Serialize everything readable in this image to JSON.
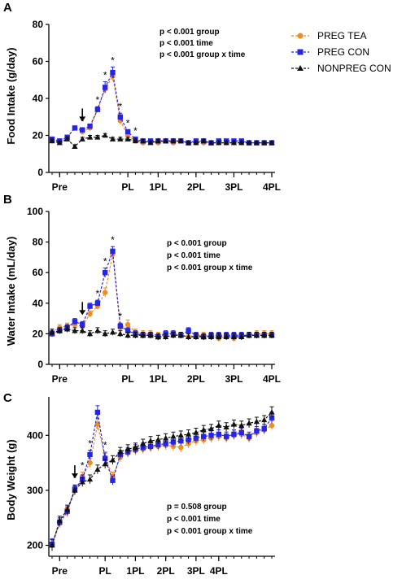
{
  "colors": {
    "preg_tea": "#f28c1e",
    "preg_con": "#2525e6",
    "nonpreg_con": "#111111"
  },
  "legend": [
    {
      "label": "PREG TEA",
      "color": "#f28c1e",
      "marker": "circle",
      "icon": "orange-circle-dashed"
    },
    {
      "label": "PREG CON",
      "color": "#2525e6",
      "marker": "square",
      "icon": "blue-square-dashed"
    },
    {
      "label": "NONPREG CON",
      "color": "#111111",
      "marker": "triangle",
      "icon": "black-triangle-dashed"
    }
  ],
  "chart_data": [
    {
      "type": "line",
      "panel_label": "A",
      "ylabel": "Food Intake (g/day)",
      "ylim": [
        0,
        80
      ],
      "yticks": [
        0,
        20,
        40,
        60,
        80
      ],
      "x_tick_labels": [
        "Pre",
        "PL",
        "1PL",
        "2PL",
        "3PL",
        "4PL"
      ],
      "x_tick_index": [
        1,
        10,
        14,
        19,
        24,
        29
      ],
      "stats": [
        "p < 0.001 group",
        "p < 0.001 time",
        "p < 0.001 group x time"
      ],
      "arrow_index": 4,
      "stars": [
        4,
        6,
        7,
        8,
        9,
        10,
        11
      ],
      "series": [
        {
          "name": "PREG TEA",
          "values": [
            17,
            17,
            19,
            24,
            22,
            24,
            34,
            45,
            52,
            28,
            20,
            17,
            16,
            17,
            16,
            17,
            16,
            17,
            16,
            16,
            16,
            16,
            16,
            16,
            16,
            16,
            16,
            16,
            16,
            16
          ],
          "errors": [
            1,
            1,
            1,
            1,
            1,
            1,
            1.5,
            2,
            2.5,
            2,
            1,
            1,
            1,
            1,
            1,
            1,
            1,
            1,
            1,
            1,
            1,
            1,
            1,
            1,
            1,
            1,
            1,
            1,
            1,
            1
          ]
        },
        {
          "name": "PREG CON",
          "values": [
            18,
            17,
            19,
            24,
            23,
            25,
            34,
            46,
            54,
            30,
            22,
            18,
            17,
            17,
            17,
            17,
            17,
            17,
            16,
            17,
            17,
            16,
            17,
            17,
            17,
            17,
            16,
            16,
            16,
            16
          ],
          "errors": [
            1,
            1,
            1,
            1,
            1,
            1,
            1.5,
            3,
            3,
            2,
            1,
            1,
            1,
            1,
            1,
            1,
            1,
            1,
            1,
            1,
            1,
            1,
            1,
            1,
            1,
            1,
            1,
            1,
            1,
            1
          ]
        },
        {
          "name": "NONPREG CON",
          "values": [
            17,
            16,
            18,
            14,
            18,
            19,
            19,
            20,
            18,
            18,
            18,
            17,
            17,
            16,
            17,
            17,
            17,
            17,
            16,
            16,
            17,
            16,
            16,
            16,
            16,
            16,
            16,
            16,
            16,
            16
          ],
          "errors": [
            1,
            1,
            1,
            1,
            1,
            1,
            1,
            1,
            1,
            1,
            1,
            1,
            1,
            1,
            1,
            1,
            1,
            1,
            1,
            1,
            1,
            1,
            1,
            1,
            1,
            1,
            1,
            1,
            1,
            1
          ]
        }
      ]
    },
    {
      "type": "line",
      "panel_label": "B",
      "ylabel": "Water Intake (mL/day)",
      "ylim": [
        0,
        100
      ],
      "yticks": [
        0,
        20,
        40,
        60,
        80,
        100
      ],
      "x_tick_labels": [
        "Pre",
        "PL",
        "1PL",
        "2PL",
        "3PL",
        "4PL"
      ],
      "x_tick_index": [
        1,
        10,
        14,
        19,
        24,
        29
      ],
      "stats": [
        "p < 0.001 group",
        "p < 0.001 time",
        "p < 0.001 group x time"
      ],
      "arrow_index": 4,
      "stars": [
        6,
        7,
        8,
        9
      ],
      "series": [
        {
          "name": "PREG TEA",
          "values": [
            21,
            24,
            25,
            26,
            25,
            33,
            38,
            47,
            72,
            24,
            26,
            21,
            20,
            20,
            19,
            20,
            20,
            19,
            18,
            19,
            19,
            18,
            17,
            18,
            17,
            18,
            19,
            20,
            20,
            20
          ],
          "errors": [
            2,
            2,
            2,
            2,
            2,
            2,
            2,
            3,
            3,
            2,
            3,
            2,
            2,
            2,
            2,
            2,
            2,
            2,
            2,
            2,
            2,
            2,
            2,
            2,
            2,
            2,
            2,
            2,
            2,
            2
          ]
        },
        {
          "name": "PREG CON",
          "values": [
            20,
            22,
            24,
            28,
            26,
            38,
            40,
            60,
            74,
            25,
            22,
            20,
            19,
            19,
            18,
            20,
            20,
            19,
            22,
            19,
            18,
            19,
            19,
            19,
            19,
            19,
            19,
            19,
            19,
            19
          ],
          "errors": [
            2,
            2,
            2,
            2,
            2,
            2,
            2,
            3,
            3,
            2,
            2,
            2,
            2,
            2,
            2,
            2,
            2,
            2,
            2,
            2,
            2,
            2,
            2,
            2,
            2,
            2,
            2,
            2,
            2,
            2
          ]
        },
        {
          "name": "NONPREG CON",
          "values": [
            21,
            22,
            23,
            22,
            22,
            20,
            22,
            20,
            21,
            20,
            19,
            19,
            19,
            19,
            18,
            18,
            19,
            19,
            18,
            18,
            18,
            18,
            18,
            18,
            18,
            18,
            19,
            19,
            19,
            19
          ],
          "errors": [
            2,
            2,
            2,
            2,
            2,
            2,
            2,
            2,
            2,
            2,
            2,
            2,
            2,
            2,
            2,
            2,
            2,
            2,
            2,
            2,
            2,
            2,
            2,
            2,
            2,
            2,
            2,
            2,
            2,
            2
          ]
        }
      ]
    },
    {
      "type": "line",
      "panel_label": "C",
      "ylabel": "Body Weight (g)",
      "ylim": [
        180,
        470
      ],
      "yticks": [
        200,
        300,
        400
      ],
      "x_tick_labels": [
        "Pre",
        "PL",
        "1PL",
        "2PL",
        "3PL",
        "4PL"
      ],
      "x_tick_index": [
        1,
        7,
        11,
        15,
        19,
        22
      ],
      "stats": [
        "p = 0.508 group",
        "p < 0.001 time",
        "p < 0.001 group x time"
      ],
      "arrow_index": 3,
      "stars": [
        3,
        4,
        5,
        7
      ],
      "series": [
        {
          "name": "PREG TEA",
          "values": [
            200,
            240,
            260,
            300,
            325,
            350,
            420,
            360,
            325,
            360,
            368,
            372,
            375,
            378,
            380,
            382,
            380,
            378,
            385,
            390,
            392,
            395,
            398,
            395,
            400,
            402,
            395,
            405,
            410,
            418
          ],
          "errors": [
            10,
            8,
            8,
            8,
            8,
            8,
            10,
            10,
            8,
            8,
            8,
            8,
            8,
            8,
            8,
            8,
            8,
            8,
            8,
            8,
            8,
            8,
            8,
            8,
            8,
            8,
            8,
            8,
            8,
            8
          ]
        },
        {
          "name": "PREG CON",
          "values": [
            202,
            242,
            262,
            302,
            320,
            365,
            442,
            358,
            318,
            365,
            370,
            375,
            378,
            380,
            383,
            385,
            388,
            390,
            392,
            395,
            398,
            400,
            402,
            398,
            402,
            405,
            398,
            408,
            412,
            432
          ],
          "errors": [
            10,
            8,
            8,
            8,
            8,
            8,
            12,
            10,
            8,
            8,
            8,
            8,
            8,
            8,
            8,
            8,
            8,
            8,
            8,
            8,
            8,
            8,
            8,
            8,
            8,
            8,
            8,
            8,
            8,
            10
          ]
        },
        {
          "name": "NONPREG CON",
          "values": [
            200,
            245,
            265,
            300,
            315,
            320,
            338,
            348,
            355,
            370,
            375,
            378,
            385,
            390,
            392,
            395,
            398,
            400,
            402,
            405,
            410,
            412,
            418,
            415,
            420,
            418,
            422,
            425,
            428,
            442
          ],
          "errors": [
            10,
            8,
            8,
            8,
            8,
            8,
            8,
            8,
            8,
            8,
            8,
            8,
            8,
            8,
            8,
            8,
            8,
            8,
            8,
            8,
            8,
            8,
            8,
            8,
            8,
            8,
            8,
            8,
            8,
            10
          ]
        }
      ]
    }
  ]
}
